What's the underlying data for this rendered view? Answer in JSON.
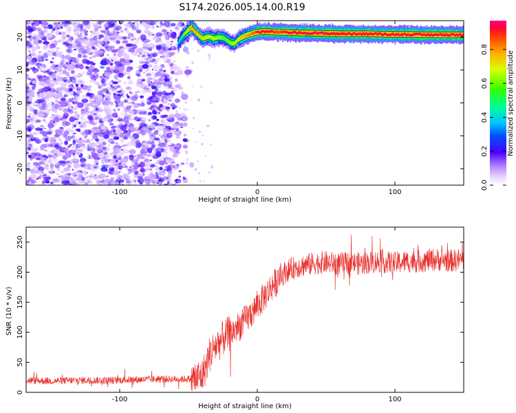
{
  "figure": {
    "title": "S174.2026.005.14.00.R19",
    "colors": {
      "snr_line": "#e8302c",
      "ridge": "#00008b"
    }
  },
  "chart_data": [
    {
      "type": "heatmap",
      "title": "S174.2026.005.14.00.R19",
      "xlabel": "Height of straight line (km)",
      "ylabel": "Frequency (Hz)",
      "xlim": [
        -168,
        150
      ],
      "ylim": [
        -25,
        25
      ],
      "xticks": [
        -100,
        0,
        100
      ],
      "xtick_labels": [
        "-100",
        "0",
        "100"
      ],
      "yticks": [
        -20,
        -10,
        0,
        10,
        20
      ],
      "ytick_labels": [
        "-20",
        "-10",
        "0",
        "10",
        "20"
      ],
      "colorbar": {
        "label": "Normalized spectral amplitude",
        "range": [
          0,
          0.97
        ],
        "ticks": [
          0,
          0.2,
          0.4,
          0.6,
          0.8
        ],
        "tick_labels": [
          "0.0",
          "0.2",
          "0.4",
          "0.6",
          "0.8"
        ]
      },
      "noise_region": {
        "x_from": -168,
        "x_to": -47,
        "amplitude_range": [
          0.05,
          0.25
        ]
      },
      "ridge": {
        "x": [
          -58,
          -55,
          -52,
          -48,
          -44,
          -40,
          -36,
          -32,
          -28,
          -24,
          -20,
          -17,
          -14,
          -10,
          -6,
          -2,
          0,
          5,
          10,
          15,
          20,
          30,
          40,
          50,
          60,
          70,
          80,
          90,
          100,
          110,
          120,
          130,
          140,
          150
        ],
        "frequency_hz": [
          18.0,
          20.0,
          21.5,
          23.0,
          21.0,
          19.5,
          20.2,
          19.5,
          20.0,
          19.6,
          18.3,
          18.0,
          19.3,
          20.2,
          20.8,
          21.4,
          21.5,
          21.7,
          21.6,
          21.5,
          21.4,
          21.3,
          21.2,
          21.1,
          21.0,
          21.0,
          21.0,
          20.9,
          20.8,
          20.8,
          20.7,
          20.7,
          20.7,
          20.7
        ],
        "amplitude": [
          0.4,
          0.55,
          0.7,
          0.85,
          0.8,
          0.75,
          0.7,
          0.7,
          0.65,
          0.6,
          0.65,
          0.7,
          0.75,
          0.8,
          0.85,
          0.9,
          0.95,
          0.95,
          0.95,
          0.9,
          0.95,
          0.95,
          0.95,
          0.95,
          0.95,
          0.95,
          0.95,
          0.95,
          0.95,
          0.95,
          0.95,
          0.95,
          0.95,
          0.95
        ]
      }
    },
    {
      "type": "line",
      "xlabel": "Height of straight line (km)",
      "ylabel": "SNR (10 * v/v)",
      "xlim": [
        -168,
        150
      ],
      "ylim": [
        0,
        275
      ],
      "xticks": [
        -100,
        0,
        100
      ],
      "xtick_labels": [
        "-100",
        "0",
        "100"
      ],
      "yticks": [
        0,
        50,
        100,
        150,
        200,
        250
      ],
      "ytick_labels": [
        "0",
        "50",
        "100",
        "150",
        "200",
        "250"
      ],
      "series": [
        {
          "name": "SNR",
          "x": [
            -168,
            -150,
            -130,
            -110,
            -90,
            -70,
            -55,
            -45,
            -40,
            -37,
            -35,
            -32,
            -30,
            -27,
            -25,
            -22,
            -20,
            -17,
            -15,
            -12,
            -10,
            -7,
            -5,
            -2,
            0,
            3,
            5,
            8,
            10,
            13,
            15,
            18,
            20,
            25,
            30,
            35,
            40,
            45,
            50,
            55,
            60,
            65,
            70,
            75,
            80,
            85,
            90,
            95,
            100,
            105,
            110,
            115,
            120,
            125,
            130,
            135,
            140,
            145,
            150
          ],
          "values": [
            20,
            19,
            20,
            20,
            21,
            22,
            22,
            23,
            28,
            45,
            62,
            72,
            78,
            84,
            90,
            95,
            98,
            102,
            108,
            112,
            118,
            124,
            130,
            138,
            145,
            152,
            160,
            168,
            176,
            182,
            188,
            194,
            200,
            206,
            210,
            212,
            214,
            216,
            216,
            215,
            214,
            215,
            215,
            214,
            216,
            217,
            218,
            216,
            215,
            217,
            218,
            218,
            219,
            220,
            221,
            220,
            219,
            220,
            221
          ]
        }
      ]
    }
  ]
}
